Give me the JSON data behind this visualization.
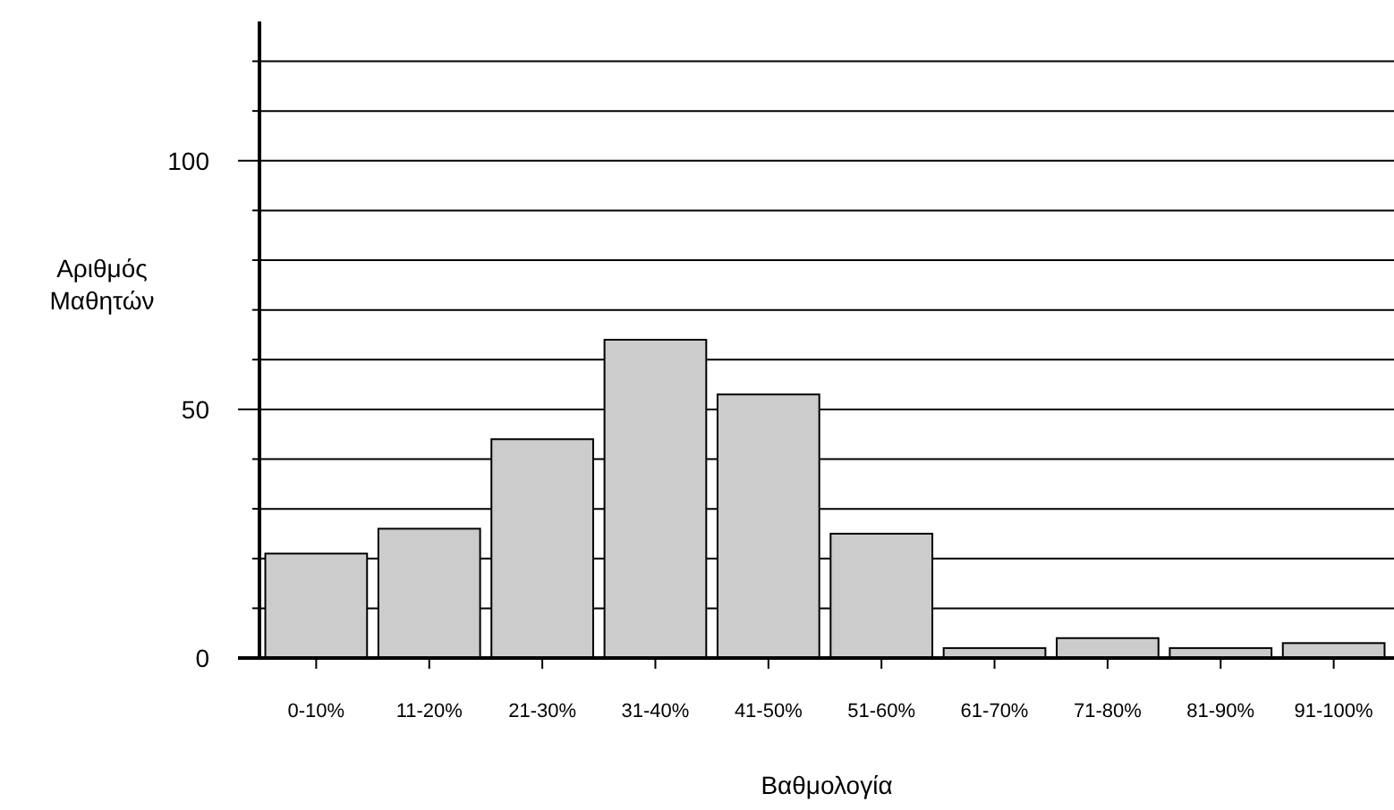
{
  "chart_data": {
    "type": "bar",
    "xlabel": "Βαθμολογία",
    "ylabel": "Αριθμός Μαθητών",
    "categories": [
      "0-10%",
      "11-20%",
      "21-30%",
      "31-40%",
      "41-50%",
      "51-60%",
      "61-70%",
      "71-80%",
      "81-90%",
      "91-100%"
    ],
    "values": [
      21,
      26,
      44,
      64,
      53,
      25,
      2,
      4,
      2,
      3
    ],
    "color": "#cccccc",
    "ylim": [
      0,
      128
    ],
    "yticks": [
      0,
      {
        "value": 10,
        "label": null
      },
      {
        "value": 20,
        "label": null
      },
      {
        "value": 30,
        "label": null
      },
      {
        "value": 40,
        "label": null
      },
      50,
      {
        "value": 60,
        "label": null
      },
      {
        "value": 70,
        "label": null
      },
      {
        "value": 80,
        "label": null
      },
      {
        "value": 90,
        "label": null
      },
      100,
      {
        "value": 110,
        "label": null
      },
      {
        "value": 120,
        "label": null
      }
    ],
    "grid": "y"
  }
}
